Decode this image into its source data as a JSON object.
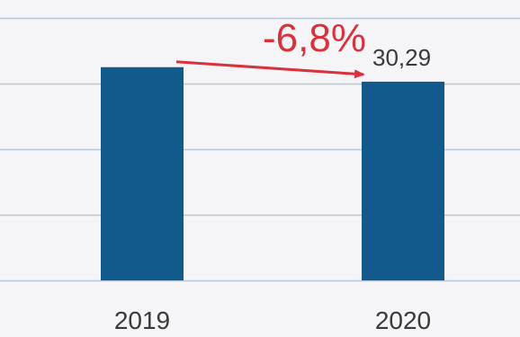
{
  "chart_data": {
    "type": "bar",
    "categories": [
      "2019",
      "2020"
    ],
    "values": [
      32.5,
      30.29
    ],
    "data_labels": [
      "",
      "30,29"
    ],
    "ylim": [
      0,
      40
    ],
    "grid": true,
    "bar_color": "#125a8c",
    "grid_color": "#b9c6d6",
    "annotation": {
      "text": "-6,8%",
      "color": "#d8323c",
      "from_category": "2019",
      "to_category": "2020"
    }
  }
}
